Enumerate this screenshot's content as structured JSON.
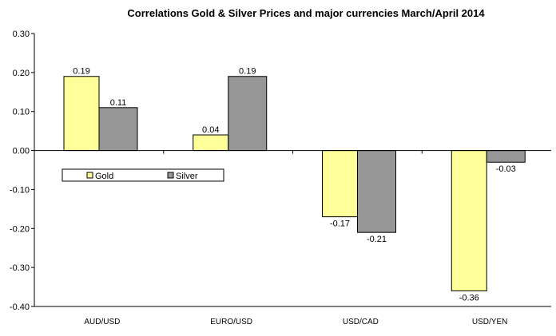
{
  "chart_data": {
    "type": "bar",
    "title": "Correlations Gold & Silver Prices and major currencies March/April 2014",
    "categories": [
      "AUD/USD",
      "EURO/USD",
      "USD/CAD",
      "USD/YEN"
    ],
    "series": [
      {
        "name": "Gold",
        "values": [
          0.19,
          0.04,
          -0.17,
          -0.36
        ],
        "labels": [
          "0.19",
          "0.04",
          "-0.17",
          "-0.36"
        ],
        "color": "#ffff99"
      },
      {
        "name": "Silver",
        "values": [
          0.11,
          0.19,
          -0.21,
          -0.03
        ],
        "labels": [
          "0.11",
          "0.19",
          "-0.21",
          "-0.03"
        ],
        "color": "#969696"
      }
    ],
    "ylim": [
      -0.4,
      0.3
    ],
    "yticks": [
      "0.30",
      "0.20",
      "0.10",
      "0.00",
      "-0.10",
      "-0.20",
      "-0.30",
      "-0.40"
    ],
    "ytick_values": [
      0.3,
      0.2,
      0.1,
      0.0,
      -0.1,
      -0.2,
      -0.3,
      -0.4
    ],
    "xlabel": "",
    "ylabel": "",
    "grid": false,
    "legend": "inside-left"
  }
}
